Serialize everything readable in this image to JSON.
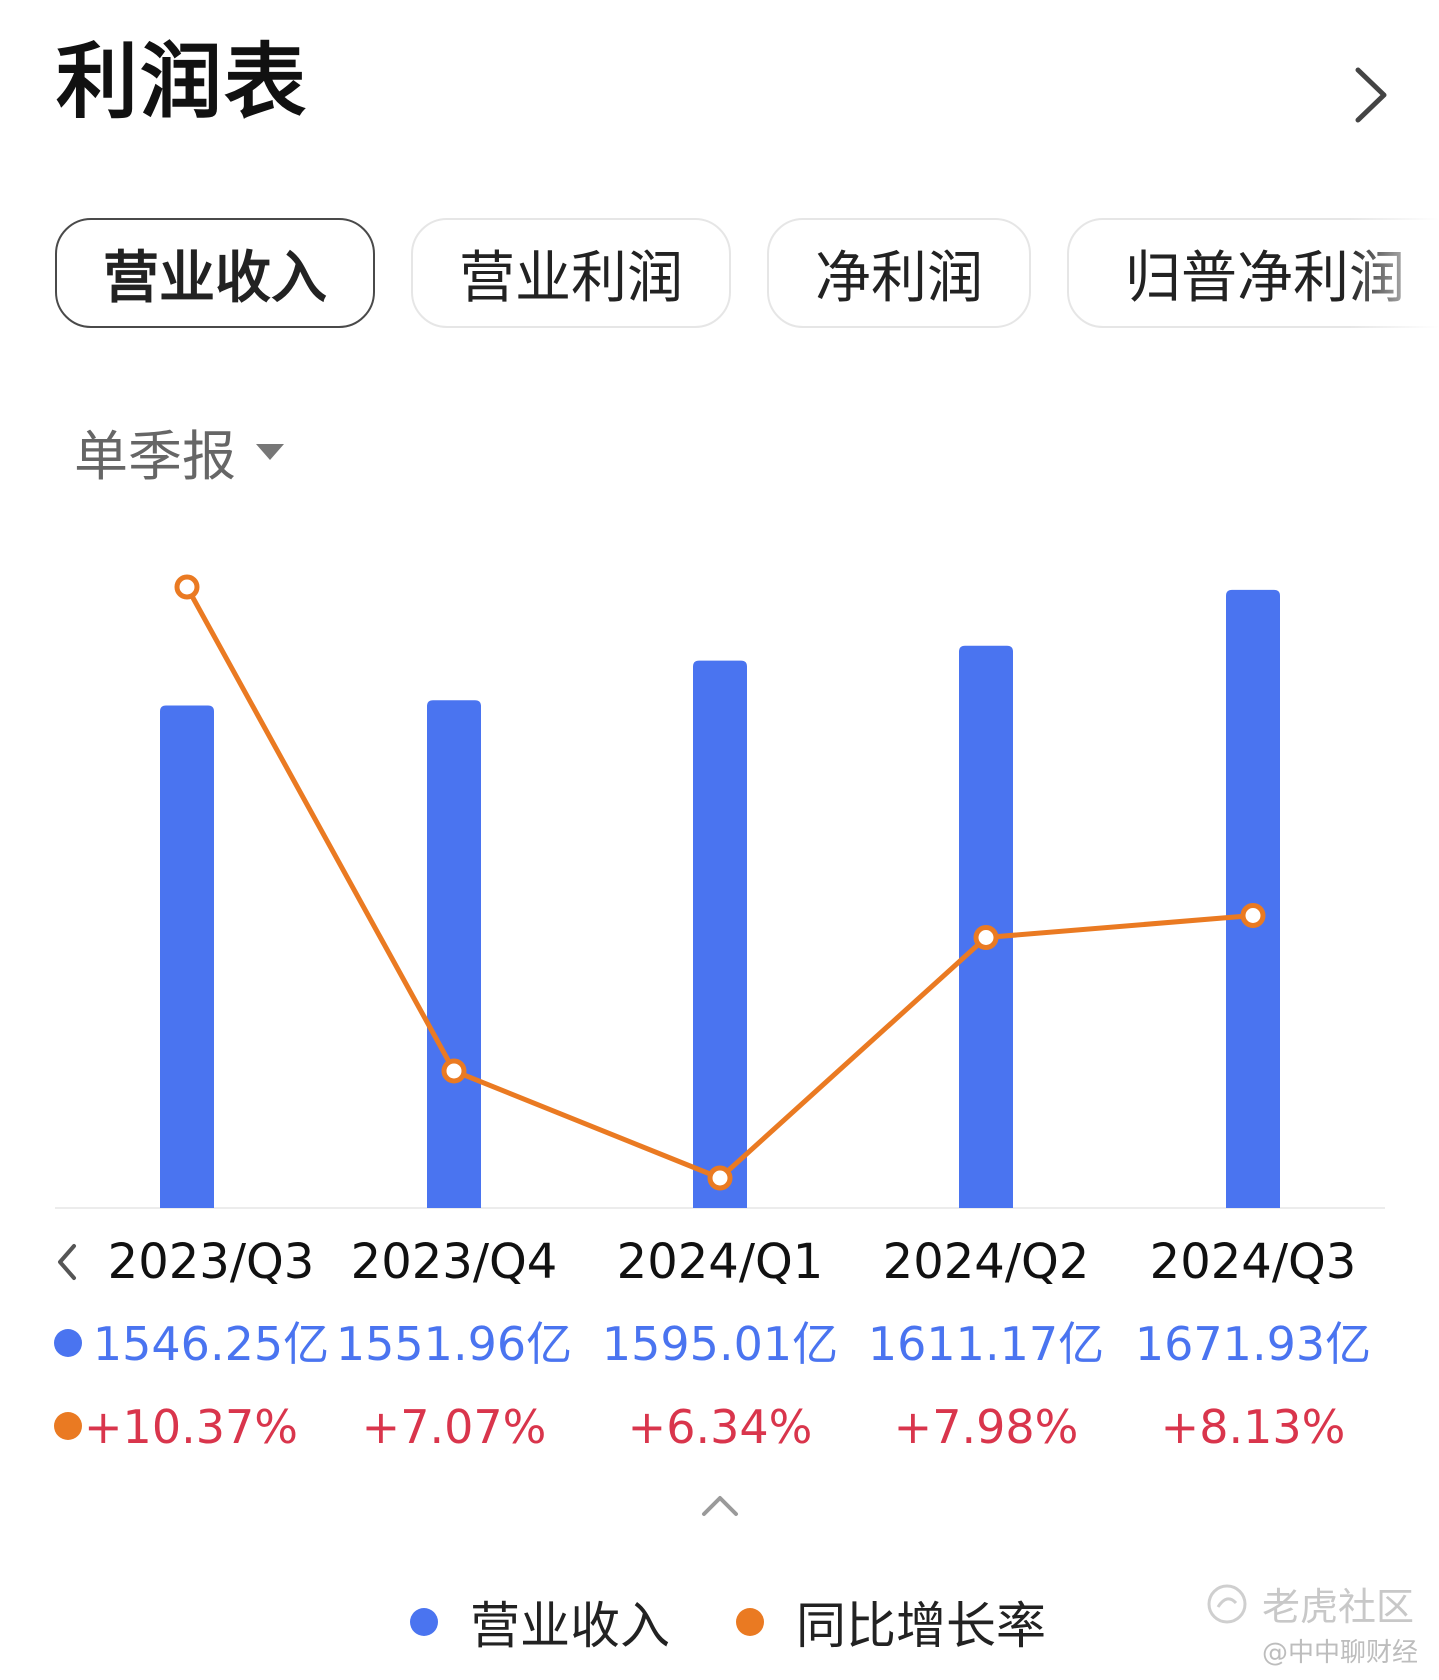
{
  "header": {
    "title": "利润表"
  },
  "tabs": [
    {
      "label": "营业收入",
      "active": true
    },
    {
      "label": "营业利润",
      "active": false
    },
    {
      "label": "净利润",
      "active": false
    },
    {
      "label": "归普净利润",
      "active": false
    }
  ],
  "period": {
    "label": "单季报"
  },
  "legend": {
    "revenue": "营业收入",
    "growth": "同比增长率"
  },
  "watermark": {
    "brand": "老虎社区",
    "credit": "@中中聊财经"
  },
  "colors": {
    "bar": "#4a74f0",
    "line": "#ea7a22",
    "positive": "#d9354c"
  },
  "chart_data": {
    "type": "bar",
    "categories": [
      "2023/Q3",
      "2023/Q4",
      "2024/Q1",
      "2024/Q2",
      "2024/Q3"
    ],
    "series": [
      {
        "name": "营业收入",
        "type": "bar",
        "values": [
          1546.25,
          1551.96,
          1595.01,
          1611.17,
          1671.93
        ]
      },
      {
        "name": "同比增长率",
        "type": "line",
        "values": [
          10.37,
          7.07,
          6.34,
          7.98,
          8.13
        ]
      }
    ],
    "value_labels": [
      "1546.25亿",
      "1551.96亿",
      "1595.01亿",
      "1611.17亿",
      "1671.93亿"
    ],
    "growth_labels": [
      "+10.37%",
      "+7.07%",
      "+6.34%",
      "+7.98%",
      "+8.13%"
    ],
    "legend_position": "bottom",
    "grid": false
  }
}
